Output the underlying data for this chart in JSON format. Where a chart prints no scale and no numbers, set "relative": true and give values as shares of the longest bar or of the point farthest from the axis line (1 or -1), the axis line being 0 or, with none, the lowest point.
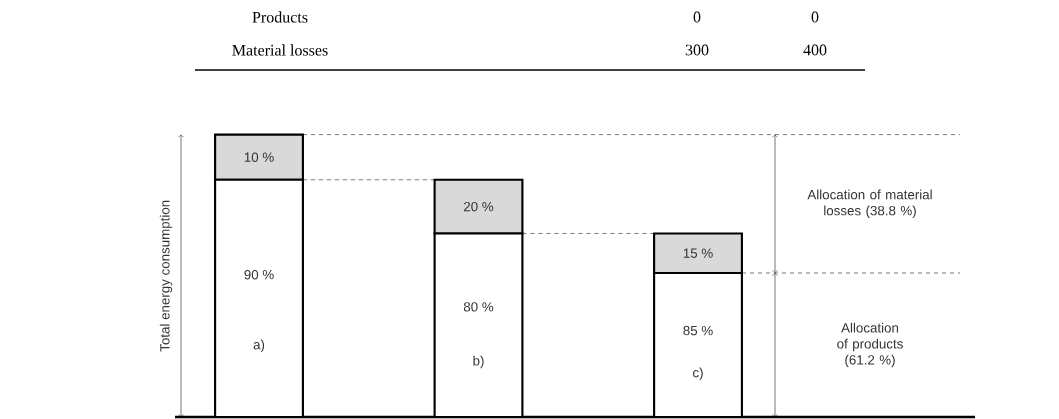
{
  "chart_data": {
    "type": "bar",
    "stacked": true,
    "relative": true,
    "categories": [
      "a)",
      "b)",
      "c)"
    ],
    "series": [
      {
        "color": "#ffffff",
        "values": [
          0.84,
          0.65,
          0.51
        ]
      },
      {
        "color": "#d9d9d9",
        "values": [
          0.16,
          0.19,
          0.14
        ]
      }
    ],
    "ref_lines": [
      {
        "axis": "y",
        "value": 1,
        "color": "#000000",
        "line_style": "dashed"
      },
      {
        "axis": "y",
        "value": 0.84,
        "color": "#000000",
        "line_style": "dashed"
      },
      {
        "axis": "y",
        "value": 0.65,
        "color": "#000000",
        "line_style": "dashed"
      },
      {
        "axis": "y",
        "value": 0.51,
        "color": "#000000",
        "line_style": "dashed"
      }
    ],
    "annotations": [
      "Products",
      "0",
      "0",
      "Material losses",
      "300",
      "400",
      "90 %",
      "80 %",
      "85 %",
      "10 %",
      "20 %",
      "15 %",
      "Allocation of material losses (38.8 %)",
      "Allocation of products (61.2 %)",
      "Total energy consumption"
    ]
  }
}
